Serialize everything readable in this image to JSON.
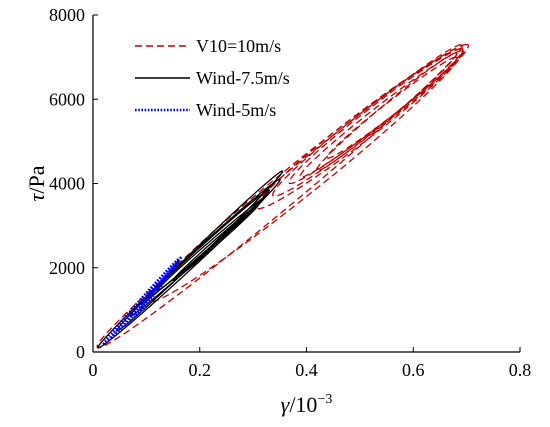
{
  "chart_data": {
    "type": "line",
    "xlabel": {
      "symbol": "γ",
      "rest": "/10",
      "sup": "−3"
    },
    "ylabel": {
      "symbol": "τ",
      "rest": "/Pa"
    },
    "xlim": [
      0,
      0.8
    ],
    "ylim": [
      0,
      8000
    ],
    "xticks": [
      "0",
      "0.2",
      "0.4",
      "0.6",
      "0.8"
    ],
    "yticks": [
      "0",
      "2000",
      "4000",
      "6000",
      "8000"
    ],
    "grid": false,
    "legend_position": "top-left",
    "series": [
      {
        "name": "V10=10m/s",
        "color": "#c00000",
        "dash": "dashed",
        "loops": [
          {
            "cx": 0.52,
            "cy": 5500,
            "ax": 0.18,
            "ay": 1800,
            "w": 0.035
          },
          {
            "cx": 0.53,
            "cy": 5600,
            "ax": 0.16,
            "ay": 1600,
            "w": 0.03
          },
          {
            "cx": 0.54,
            "cy": 5650,
            "ax": 0.15,
            "ay": 1500,
            "w": 0.025
          },
          {
            "cx": 0.55,
            "cy": 5700,
            "ax": 0.13,
            "ay": 1400,
            "w": 0.02
          },
          {
            "cx": 0.56,
            "cy": 5800,
            "ax": 0.12,
            "ay": 1200,
            "w": 0.02
          },
          {
            "cx": 0.5,
            "cy": 5300,
            "ax": 0.19,
            "ay": 1900,
            "w": 0.04
          },
          {
            "cx": 0.4,
            "cy": 4200,
            "ax": 0.29,
            "ay": 3000,
            "w": 0.05
          },
          {
            "cx": 0.35,
            "cy": 3700,
            "ax": 0.34,
            "ay": 3600,
            "w": 0.04
          }
        ]
      },
      {
        "name": "Wind-7.5m/s",
        "color": "#000000",
        "dash": "solid",
        "loops": [
          {
            "cx": 0.2,
            "cy": 2400,
            "ax": 0.155,
            "ay": 1900,
            "w": 0.012
          },
          {
            "cx": 0.21,
            "cy": 2500,
            "ax": 0.12,
            "ay": 1350,
            "w": 0.01
          },
          {
            "cx": 0.22,
            "cy": 2550,
            "ax": 0.1,
            "ay": 1100,
            "w": 0.008
          },
          {
            "cx": 0.23,
            "cy": 2600,
            "ax": 0.08,
            "ay": 900,
            "w": 0.007
          },
          {
            "cx": 0.2,
            "cy": 2350,
            "ax": 0.13,
            "ay": 1500,
            "w": 0.011
          },
          {
            "cx": 0.18,
            "cy": 2100,
            "ax": 0.17,
            "ay": 2000,
            "w": 0.015
          }
        ]
      },
      {
        "name": "Wind-5m/s",
        "color": "#0000ff",
        "dash": "dotted",
        "loops": [
          {
            "cx": 0.1,
            "cy": 1300,
            "ax": 0.065,
            "ay": 950,
            "w": 0.006
          },
          {
            "cx": 0.11,
            "cy": 1400,
            "ax": 0.05,
            "ay": 800,
            "w": 0.005
          },
          {
            "cx": 0.12,
            "cy": 1500,
            "ax": 0.04,
            "ay": 650,
            "w": 0.004
          },
          {
            "cx": 0.09,
            "cy": 1200,
            "ax": 0.07,
            "ay": 1000,
            "w": 0.005
          }
        ]
      }
    ]
  }
}
